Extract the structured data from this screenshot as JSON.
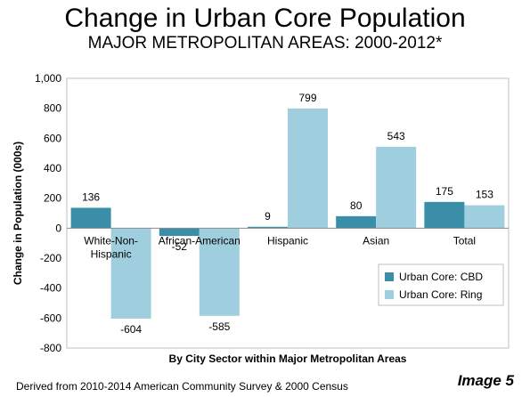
{
  "title": "Change in Urban Core Population",
  "subtitle": "MAJOR METROPOLITAN AREAS: 2000-2012*",
  "footnote": "Derived from 2010-2014 American Community Survey & 2000 Census",
  "image_tag": "Image 5",
  "colors": {
    "cbd": "#3a8ea8",
    "ring": "#9fcfde"
  },
  "chart_data": {
    "type": "bar",
    "categories": [
      "White-Non-Hispanic",
      "African-American",
      "Hispanic",
      "Asian",
      "Total"
    ],
    "category_lines": [
      [
        "White-Non-",
        "Hispanic"
      ],
      [
        "African-American"
      ],
      [
        "Hispanic"
      ],
      [
        "Asian"
      ],
      [
        "Total"
      ]
    ],
    "series": [
      {
        "name": "Urban Core: CBD",
        "values": [
          136,
          -52,
          9,
          80,
          175
        ]
      },
      {
        "name": "Urban Core: Ring",
        "values": [
          -604,
          -585,
          799,
          543,
          153
        ]
      }
    ],
    "xlabel": "By City Sector within Major Metropolitan Areas",
    "ylabel": "Change in Population (000s)",
    "ylim": [
      -800,
      1000
    ],
    "yticks": [
      -800,
      -600,
      -400,
      -200,
      0,
      200,
      400,
      600,
      800,
      1000
    ],
    "ytick_labels": [
      "-800",
      "-600",
      "-400",
      "-200",
      "0",
      "200",
      "400",
      "600",
      "800",
      "1,000"
    ],
    "legend_position": "lower-right",
    "grid": false
  }
}
